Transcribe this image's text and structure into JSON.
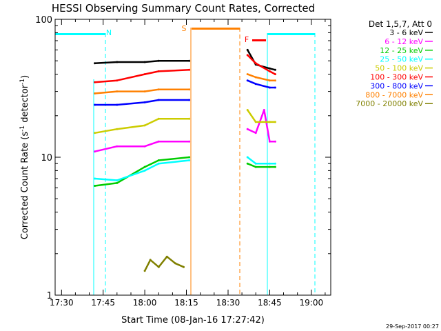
{
  "chart_data": {
    "type": "line",
    "title": "HESSI Observing Summary Count Rates, Corrected",
    "xlabel": "Start Time (08-Jan-16 17:27:42)",
    "ylabel_main": "Corrected Count Rate (s",
    "ylabel_sup1": "-1",
    "ylabel_mid": " detector",
    "ylabel_sup2": "-1",
    "ylabel_end": ")",
    "yscale": "log",
    "ylim": [
      1,
      100
    ],
    "xlim": [
      "17:27:42",
      "19:07:00"
    ],
    "y_ticks": [
      "1",
      "10",
      "100"
    ],
    "x_ticks": [
      "17:30",
      "17:45",
      "18:00",
      "18:15",
      "18:30",
      "18:45",
      "19:00"
    ],
    "legend_title": "Det 1,5,7, Att 0",
    "legend_position": "right",
    "timestamp": "29-Sep-2017 00:27",
    "flags": {
      "night": "N",
      "saa": "S",
      "flare": "F"
    },
    "series": [
      {
        "name": "3 - 6 keV",
        "color": "#000000",
        "x": [
          "17:42:00",
          "17:50:00",
          "18:00:00",
          "18:05:00",
          "18:16:00",
          "18:37:00",
          "18:40:00",
          "18:45:00",
          "18:47:00"
        ],
        "y": [
          48,
          49,
          49,
          50,
          50,
          60,
          47,
          44,
          43
        ]
      },
      {
        "name": "6 - 12 keV",
        "color": "#ff00ff",
        "x": [
          "17:42:00",
          "17:50:00",
          "18:00:00",
          "18:05:00",
          "18:16:00",
          "18:37:00",
          "18:40:00",
          "18:43:00",
          "18:45:00",
          "18:47:00"
        ],
        "y": [
          11,
          12,
          12,
          13,
          13,
          16,
          15,
          22,
          13,
          13
        ]
      },
      {
        "name": "12 - 25 keV",
        "color": "#00cc00",
        "x": [
          "17:42:00",
          "17:50:00",
          "18:00:00",
          "18:05:00",
          "18:16:00",
          "18:37:00",
          "18:40:00",
          "18:45:00",
          "18:47:00"
        ],
        "y": [
          6.2,
          6.5,
          8.5,
          9.5,
          10,
          9,
          8.5,
          8.5,
          8.5
        ]
      },
      {
        "name": "25 - 50 keV",
        "color": "#00ffff",
        "x": [
          "17:42:00",
          "17:50:00",
          "18:00:00",
          "18:05:00",
          "18:16:00",
          "18:37:00",
          "18:40:00",
          "18:45:00",
          "18:47:00"
        ],
        "y": [
          7,
          6.8,
          8,
          9,
          9.5,
          10,
          9,
          9,
          9
        ]
      },
      {
        "name": "50 - 100 keV",
        "color": "#cccc00",
        "x": [
          "17:42:00",
          "17:50:00",
          "18:00:00",
          "18:05:00",
          "18:16:00",
          "18:37:00",
          "18:40:00",
          "18:45:00",
          "18:47:00"
        ],
        "y": [
          15,
          16,
          17,
          19,
          19,
          22,
          18,
          18,
          18
        ]
      },
      {
        "name": "100 - 300 keV",
        "color": "#ff0000",
        "x": [
          "17:42:00",
          "17:50:00",
          "18:00:00",
          "18:05:00",
          "18:16:00",
          "18:37:00",
          "18:40:00",
          "18:45:00",
          "18:47:00"
        ],
        "y": [
          35,
          36,
          40,
          42,
          43,
          55,
          48,
          42,
          40
        ]
      },
      {
        "name": "300 - 800 keV",
        "color": "#0000ff",
        "x": [
          "17:42:00",
          "17:50:00",
          "18:00:00",
          "18:05:00",
          "18:16:00",
          "18:37:00",
          "18:40:00",
          "18:45:00",
          "18:47:00"
        ],
        "y": [
          24,
          24,
          25,
          26,
          26,
          36,
          34,
          32,
          32
        ]
      },
      {
        "name": "800 - 7000 keV",
        "color": "#ff8000",
        "x": [
          "17:42:00",
          "17:50:00",
          "18:00:00",
          "18:05:00",
          "18:16:00",
          "18:37:00",
          "18:40:00",
          "18:45:00",
          "18:47:00"
        ],
        "y": [
          29,
          30,
          30,
          31,
          31,
          40,
          38,
          36,
          36
        ]
      },
      {
        "name": "7000 - 20000 keV",
        "color": "#808000",
        "x": [
          "18:00:00",
          "18:02:00",
          "18:05:00",
          "18:08:00",
          "18:11:00",
          "18:14:00"
        ],
        "y": [
          1.5,
          1.8,
          1.6,
          1.9,
          1.7,
          1.6
        ]
      }
    ]
  }
}
